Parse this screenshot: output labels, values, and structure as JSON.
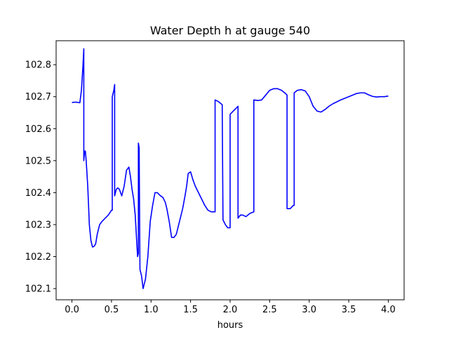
{
  "chart_data": {
    "type": "line",
    "title": "Water Depth h at gauge 540",
    "xlabel": "hours",
    "ylabel": "",
    "xlim": [
      -0.2,
      4.2
    ],
    "ylim": [
      102.065,
      102.875
    ],
    "xticks": [
      0.0,
      0.5,
      1.0,
      1.5,
      2.0,
      2.5,
      3.0,
      3.5,
      4.0
    ],
    "xtick_labels": [
      "0.0",
      "0.5",
      "1.0",
      "1.5",
      "2.0",
      "2.5",
      "3.0",
      "3.5",
      "4.0"
    ],
    "yticks": [
      102.1,
      102.2,
      102.3,
      102.4,
      102.5,
      102.6,
      102.7,
      102.8
    ],
    "ytick_labels": [
      "102.1",
      "102.2",
      "102.3",
      "102.4",
      "102.5",
      "102.6",
      "102.7",
      "102.8"
    ],
    "grid": false,
    "legend": "none",
    "series": [
      {
        "color": "#0000ff",
        "x": [
          0.0,
          0.05,
          0.1,
          0.12,
          0.14,
          0.15,
          0.15,
          0.16,
          0.17,
          0.18,
          0.2,
          0.22,
          0.24,
          0.26,
          0.28,
          0.3,
          0.32,
          0.35,
          0.38,
          0.42,
          0.46,
          0.5,
          0.51,
          0.51,
          0.53,
          0.54,
          0.54,
          0.56,
          0.58,
          0.6,
          0.63,
          0.66,
          0.69,
          0.72,
          0.74,
          0.76,
          0.78,
          0.8,
          0.83,
          0.84,
          0.84,
          0.85,
          0.86,
          0.88,
          0.9,
          0.93,
          0.96,
          0.99,
          1.02,
          1.05,
          1.08,
          1.12,
          1.15,
          1.18,
          1.2,
          1.23,
          1.26,
          1.29,
          1.32,
          1.36,
          1.4,
          1.43,
          1.45,
          1.47,
          1.5,
          1.53,
          1.56,
          1.6,
          1.64,
          1.68,
          1.72,
          1.76,
          1.8,
          1.81,
          1.81,
          1.85,
          1.9,
          1.91,
          1.91,
          1.94,
          1.97,
          2.0,
          2.0,
          2.04,
          2.08,
          2.1,
          2.1,
          2.13,
          2.16,
          2.2,
          2.25,
          2.3,
          2.3,
          2.35,
          2.4,
          2.45,
          2.5,
          2.55,
          2.6,
          2.65,
          2.7,
          2.72,
          2.72,
          2.76,
          2.8,
          2.81,
          2.81,
          2.85,
          2.9,
          2.95,
          3.0,
          3.05,
          3.1,
          3.15,
          3.2,
          3.25,
          3.3,
          3.35,
          3.4,
          3.5,
          3.6,
          3.65,
          3.7,
          3.75,
          3.8,
          3.85,
          3.9,
          3.95,
          4.0
        ],
        "y": [
          102.682,
          102.683,
          102.681,
          102.72,
          102.8,
          102.85,
          102.5,
          102.53,
          102.53,
          102.5,
          102.42,
          102.3,
          102.25,
          102.23,
          102.232,
          102.24,
          102.27,
          102.3,
          102.31,
          102.32,
          102.33,
          102.345,
          102.345,
          102.7,
          102.72,
          102.738,
          102.39,
          102.41,
          102.415,
          102.41,
          102.39,
          102.42,
          102.47,
          102.48,
          102.45,
          102.41,
          102.38,
          102.33,
          102.2,
          102.21,
          102.555,
          102.54,
          102.16,
          102.14,
          102.1,
          102.13,
          102.2,
          102.31,
          102.36,
          102.4,
          102.4,
          102.39,
          102.385,
          102.37,
          102.35,
          102.31,
          102.26,
          102.26,
          102.27,
          102.31,
          102.35,
          102.39,
          102.42,
          102.46,
          102.465,
          102.44,
          102.42,
          102.4,
          102.38,
          102.36,
          102.345,
          102.34,
          102.34,
          102.34,
          102.69,
          102.685,
          102.675,
          102.315,
          102.315,
          102.3,
          102.29,
          102.29,
          102.645,
          102.655,
          102.665,
          102.67,
          102.32,
          102.33,
          102.33,
          102.325,
          102.335,
          102.34,
          102.69,
          102.688,
          102.69,
          102.705,
          102.72,
          102.725,
          102.725,
          102.72,
          102.71,
          102.705,
          102.35,
          102.35,
          102.36,
          102.36,
          102.712,
          102.72,
          102.722,
          102.718,
          102.7,
          102.67,
          102.655,
          102.652,
          102.66,
          102.67,
          102.678,
          102.684,
          102.69,
          102.7,
          102.71,
          102.712,
          102.712,
          102.706,
          102.701,
          102.699,
          102.7,
          102.7,
          102.702
        ]
      }
    ]
  }
}
